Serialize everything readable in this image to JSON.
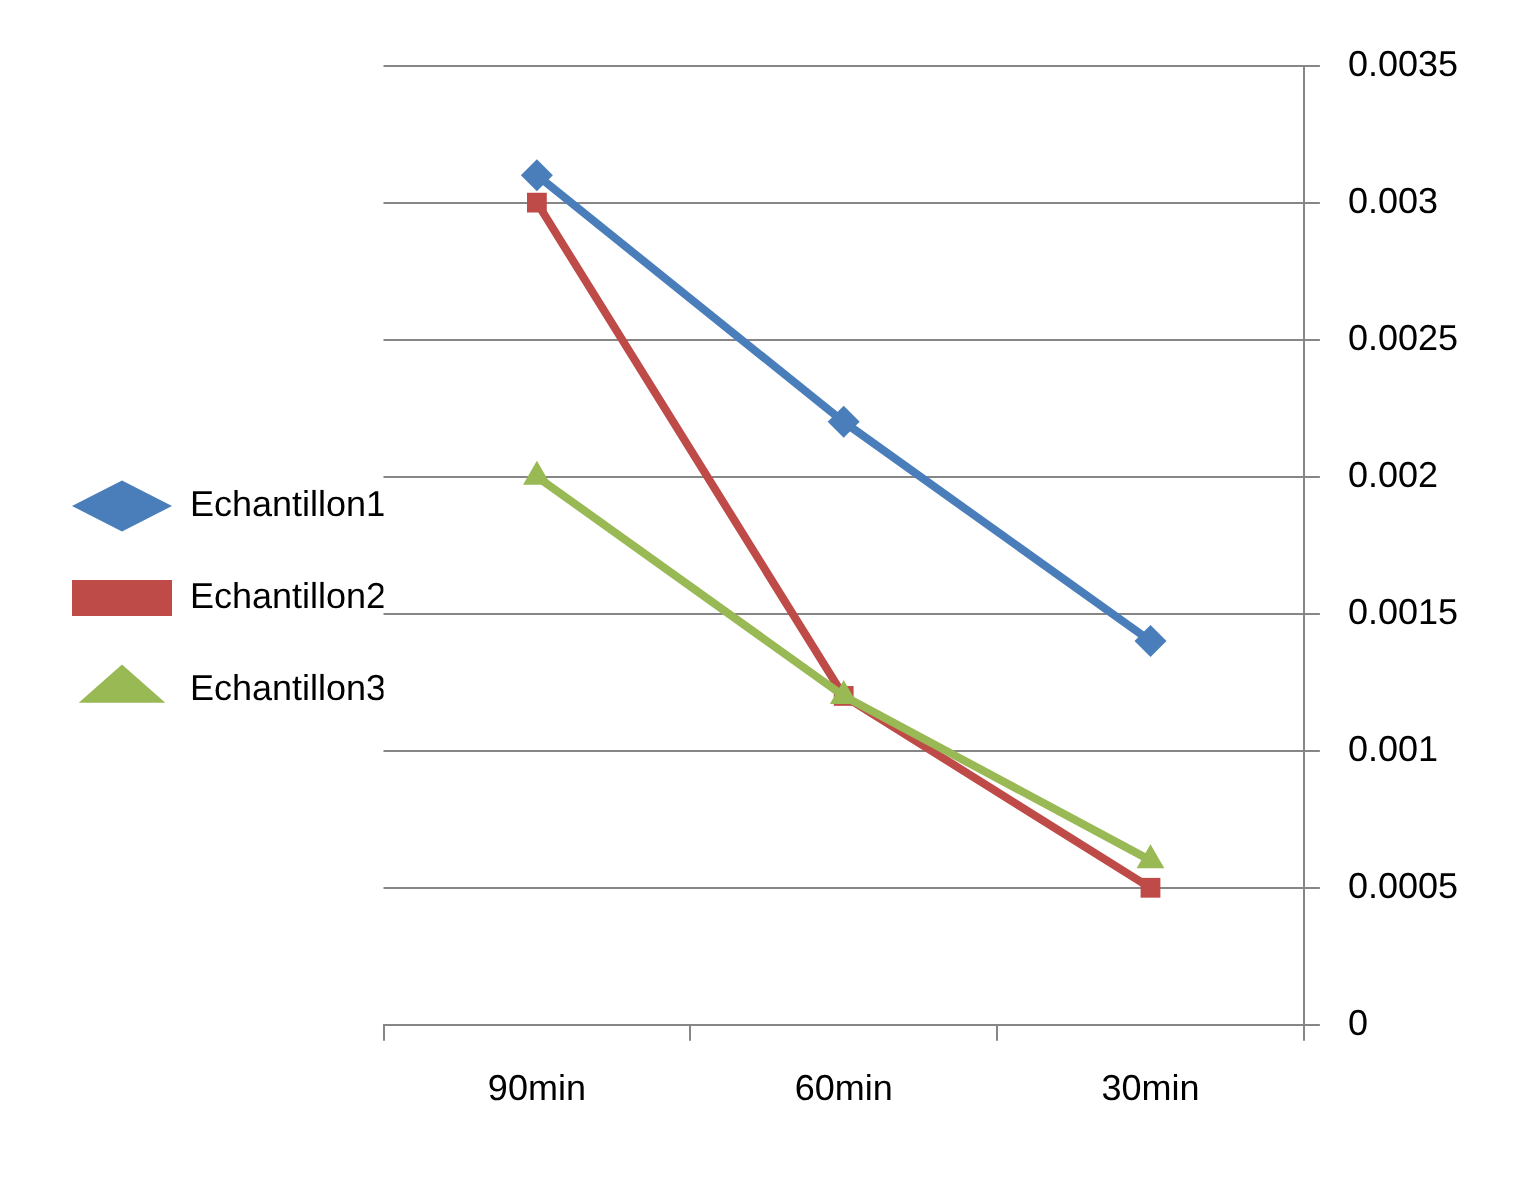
{
  "chart_data": {
    "type": "line",
    "categories": [
      "90min",
      "60min",
      "30min"
    ],
    "series": [
      {
        "name": "Echantillon1",
        "color": "#4a7ebb",
        "marker": "diamond",
        "values": [
          0.0031,
          0.0022,
          0.0014
        ]
      },
      {
        "name": "Echantillon2",
        "color": "#be4b48",
        "marker": "square",
        "values": [
          0.003,
          0.0012,
          0.0005
        ]
      },
      {
        "name": "Echantillon3",
        "color": "#98b954",
        "marker": "triangle",
        "values": [
          0.002,
          0.0012,
          0.0006
        ]
      }
    ],
    "ylim": [
      0,
      0.0035
    ],
    "yticks": [
      0,
      0.0005,
      0.001,
      0.0015,
      0.002,
      0.0025,
      0.003,
      0.0035
    ],
    "grid": "y",
    "legend": "left"
  }
}
